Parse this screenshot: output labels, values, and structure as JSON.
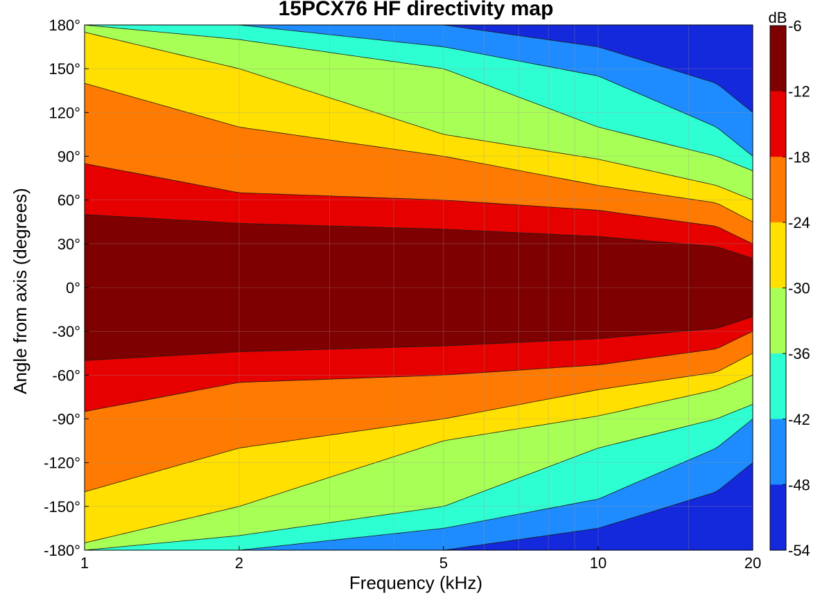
{
  "chart_data": {
    "type": "heatmap",
    "title": "15PCX76 HF directivity map",
    "xlabel": "Frequency (kHz)",
    "ylabel": "Angle from axis (degrees)",
    "x_scale": "log",
    "xlim": [
      1,
      20
    ],
    "ylim": [
      -180,
      180
    ],
    "x_ticks": [
      1,
      2,
      5,
      10,
      20
    ],
    "x_tick_labels": [
      "1",
      "2",
      "5",
      "10",
      "20"
    ],
    "y_ticks": [
      180,
      150,
      120,
      90,
      60,
      30,
      0,
      -30,
      -60,
      -90,
      -120,
      -150,
      -180
    ],
    "y_tick_labels": [
      "180°",
      "150°",
      "120°",
      "90°",
      "60°",
      "30°",
      "0°",
      "-30°",
      "-60°",
      "-90°",
      "-120°",
      "-150°",
      "-180°"
    ],
    "grid": true,
    "colorbar": {
      "label": "dB",
      "range": [
        -54,
        -6
      ],
      "ticks": [
        -6,
        -12,
        -18,
        -24,
        -30,
        -36,
        -42,
        -48,
        -54
      ],
      "tick_labels": [
        "-6",
        "-12",
        "-18",
        "-24",
        "-30",
        "-36",
        "-42",
        "-48",
        "-54"
      ],
      "levels": [
        -6,
        -12,
        -18,
        -24,
        -30,
        -36,
        -42,
        -48,
        -54
      ],
      "level_colors": [
        "#7f0000",
        "#e60000",
        "#ff7a00",
        "#ffe000",
        "#a8ff55",
        "#2dffd2",
        "#1e8cff",
        "#1428dc",
        "#00008f"
      ]
    },
    "contour_boundaries": {
      "frequencies_khz": [
        1,
        2,
        5,
        10,
        17,
        20
      ],
      "angle_minus6dB": [
        50,
        44,
        40,
        35,
        28,
        20
      ],
      "angle_minus12dB": [
        85,
        65,
        60,
        53,
        42,
        30
      ],
      "angle_minus18dB": [
        140,
        110,
        90,
        70,
        58,
        45
      ],
      "angle_minus24dB": [
        175,
        150,
        105,
        88,
        70,
        60
      ],
      "angle_minus30dB": [
        180,
        170,
        150,
        110,
        90,
        80
      ],
      "angle_minus36dB": [
        180,
        180,
        165,
        145,
        110,
        90
      ],
      "angle_minus42dB": [
        180,
        180,
        180,
        165,
        140,
        120
      ]
    }
  }
}
